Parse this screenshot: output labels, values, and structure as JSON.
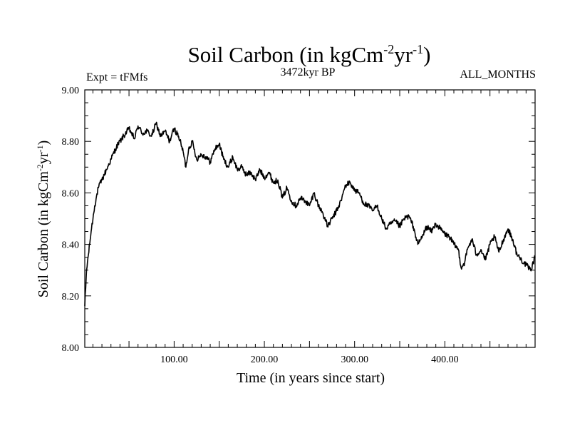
{
  "chart_data": {
    "type": "line",
    "title": "Soil Carbon (in kgCm",
    "title_sup1": "-2",
    "title_mid": "yr",
    "title_sup2": "-1",
    "title_end": ")",
    "subtitle_left": "Expt = tFMfs",
    "subtitle_center": "3472kyr BP",
    "subtitle_right": "ALL_MONTHS",
    "xlabel": "Time (in years since start)",
    "ylabel": "Soil Carbon (in kgCm",
    "ylabel_sup1": "-2",
    "ylabel_mid": "yr",
    "ylabel_sup2": "-1",
    "ylabel_end": ")",
    "xlim": [
      1,
      500
    ],
    "ylim": [
      8.0,
      9.0
    ],
    "xticks": [
      100,
      200,
      300,
      400
    ],
    "xtick_labels": [
      "100.00",
      "200.00",
      "300.00",
      "400.00"
    ],
    "yticks": [
      8.0,
      8.2,
      8.4,
      8.6,
      8.8,
      9.0
    ],
    "ytick_labels": [
      "8.00",
      "8.20",
      "8.40",
      "8.60",
      "8.80",
      "9.00"
    ],
    "series": [
      {
        "name": "Soil Carbon",
        "color": "#000000",
        "x": [
          1,
          3,
          5,
          8,
          12,
          16,
          20,
          25,
          30,
          35,
          38,
          42,
          46,
          50,
          53,
          56,
          60,
          65,
          70,
          75,
          80,
          85,
          90,
          95,
          100,
          105,
          110,
          113,
          116,
          120,
          125,
          130,
          135,
          140,
          145,
          150,
          155,
          160,
          165,
          170,
          175,
          180,
          185,
          190,
          195,
          200,
          205,
          210,
          215,
          220,
          225,
          230,
          235,
          240,
          245,
          250,
          255,
          260,
          265,
          270,
          275,
          280,
          285,
          290,
          295,
          300,
          305,
          310,
          315,
          320,
          325,
          330,
          335,
          340,
          345,
          350,
          355,
          360,
          365,
          370,
          375,
          380,
          385,
          390,
          395,
          400,
          405,
          410,
          415,
          418,
          422,
          425,
          430,
          435,
          440,
          445,
          450,
          455,
          460,
          465,
          470,
          475,
          480,
          485,
          490,
          495,
          500
        ],
        "values": [
          8.16,
          8.3,
          8.36,
          8.45,
          8.55,
          8.62,
          8.65,
          8.69,
          8.73,
          8.77,
          8.79,
          8.81,
          8.83,
          8.85,
          8.83,
          8.81,
          8.86,
          8.83,
          8.84,
          8.82,
          8.87,
          8.82,
          8.84,
          8.8,
          8.85,
          8.82,
          8.76,
          8.7,
          8.77,
          8.8,
          8.73,
          8.75,
          8.74,
          8.72,
          8.77,
          8.79,
          8.73,
          8.7,
          8.74,
          8.69,
          8.7,
          8.67,
          8.68,
          8.65,
          8.69,
          8.66,
          8.68,
          8.64,
          8.65,
          8.58,
          8.62,
          8.57,
          8.55,
          8.58,
          8.57,
          8.55,
          8.6,
          8.55,
          8.52,
          8.47,
          8.5,
          8.53,
          8.57,
          8.63,
          8.64,
          8.61,
          8.6,
          8.56,
          8.55,
          8.53,
          8.55,
          8.5,
          8.46,
          8.48,
          8.49,
          8.47,
          8.5,
          8.51,
          8.47,
          8.4,
          8.43,
          8.47,
          8.45,
          8.48,
          8.46,
          8.44,
          8.43,
          8.4,
          8.38,
          8.31,
          8.33,
          8.38,
          8.42,
          8.36,
          8.38,
          8.34,
          8.4,
          8.43,
          8.37,
          8.42,
          8.46,
          8.42,
          8.36,
          8.34,
          8.32,
          8.3,
          8.35
        ]
      }
    ]
  }
}
